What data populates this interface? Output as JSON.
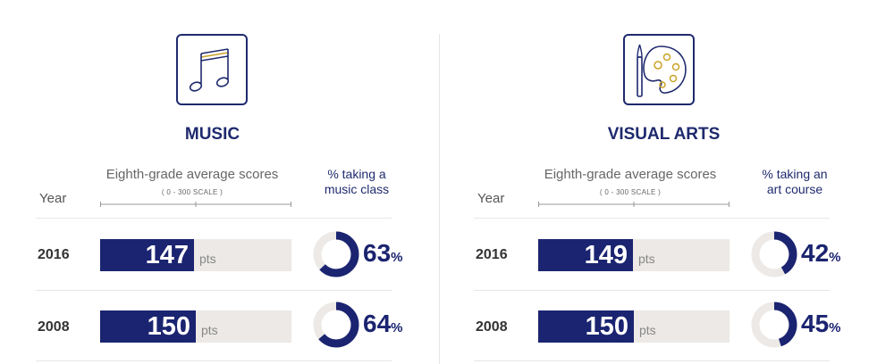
{
  "colors": {
    "navy": "#1b2470",
    "track": "#ece9e6",
    "icon_accent": "#c9a227"
  },
  "chart_data": [
    {
      "type": "bar",
      "subject": "MUSIC",
      "icon": "music-note-icon",
      "year_label": "Year",
      "score_label": "Eighth-grade average scores",
      "scale_note": "( 0 - 300 SCALE )",
      "xlim": [
        0,
        300
      ],
      "unit": "pts",
      "percent_label_line1": "% taking a",
      "percent_label_line2": "music class",
      "categories": [
        "2016",
        "2008"
      ],
      "series": [
        {
          "name": "Eighth-grade average scores",
          "values": [
            147,
            150
          ]
        },
        {
          "name": "% taking a music class",
          "values": [
            63,
            64
          ]
        }
      ]
    },
    {
      "type": "bar",
      "subject": "VISUAL ARTS",
      "icon": "paint-palette-icon",
      "year_label": "Year",
      "score_label": "Eighth-grade average scores",
      "scale_note": "( 0 - 300 SCALE )",
      "xlim": [
        0,
        300
      ],
      "unit": "pts",
      "percent_label_line1": "% taking an",
      "percent_label_line2": "art course",
      "categories": [
        "2016",
        "2008"
      ],
      "series": [
        {
          "name": "Eighth-grade average scores",
          "values": [
            149,
            150
          ]
        },
        {
          "name": "% taking an art course",
          "values": [
            42,
            45
          ]
        }
      ]
    }
  ]
}
